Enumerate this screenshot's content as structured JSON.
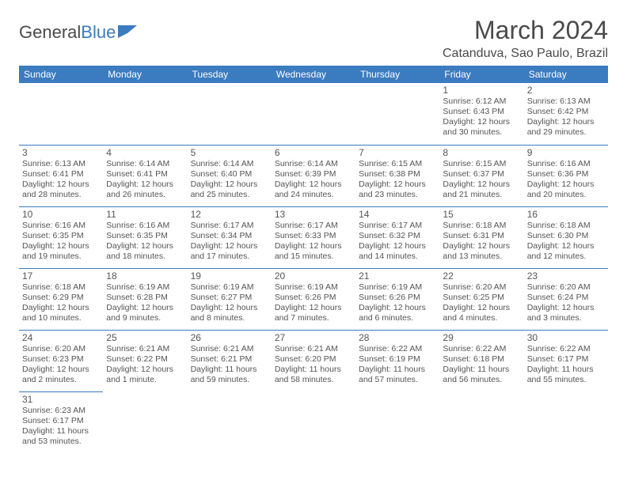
{
  "brand": {
    "part1": "General",
    "part2": "Blue"
  },
  "title": "March 2024",
  "location": "Catanduva, Sao Paulo, Brazil",
  "colors": {
    "header_bg": "#3b7bbf",
    "text": "#555555",
    "border": "#3b7bbf"
  },
  "day_headers": [
    "Sunday",
    "Monday",
    "Tuesday",
    "Wednesday",
    "Thursday",
    "Friday",
    "Saturday"
  ],
  "weeks": [
    [
      null,
      null,
      null,
      null,
      null,
      {
        "n": "1",
        "sr": "Sunrise: 6:12 AM",
        "ss": "Sunset: 6:43 PM",
        "dl": "Daylight: 12 hours and 30 minutes."
      },
      {
        "n": "2",
        "sr": "Sunrise: 6:13 AM",
        "ss": "Sunset: 6:42 PM",
        "dl": "Daylight: 12 hours and 29 minutes."
      }
    ],
    [
      {
        "n": "3",
        "sr": "Sunrise: 6:13 AM",
        "ss": "Sunset: 6:41 PM",
        "dl": "Daylight: 12 hours and 28 minutes."
      },
      {
        "n": "4",
        "sr": "Sunrise: 6:14 AM",
        "ss": "Sunset: 6:41 PM",
        "dl": "Daylight: 12 hours and 26 minutes."
      },
      {
        "n": "5",
        "sr": "Sunrise: 6:14 AM",
        "ss": "Sunset: 6:40 PM",
        "dl": "Daylight: 12 hours and 25 minutes."
      },
      {
        "n": "6",
        "sr": "Sunrise: 6:14 AM",
        "ss": "Sunset: 6:39 PM",
        "dl": "Daylight: 12 hours and 24 minutes."
      },
      {
        "n": "7",
        "sr": "Sunrise: 6:15 AM",
        "ss": "Sunset: 6:38 PM",
        "dl": "Daylight: 12 hours and 23 minutes."
      },
      {
        "n": "8",
        "sr": "Sunrise: 6:15 AM",
        "ss": "Sunset: 6:37 PM",
        "dl": "Daylight: 12 hours and 21 minutes."
      },
      {
        "n": "9",
        "sr": "Sunrise: 6:16 AM",
        "ss": "Sunset: 6:36 PM",
        "dl": "Daylight: 12 hours and 20 minutes."
      }
    ],
    [
      {
        "n": "10",
        "sr": "Sunrise: 6:16 AM",
        "ss": "Sunset: 6:35 PM",
        "dl": "Daylight: 12 hours and 19 minutes."
      },
      {
        "n": "11",
        "sr": "Sunrise: 6:16 AM",
        "ss": "Sunset: 6:35 PM",
        "dl": "Daylight: 12 hours and 18 minutes."
      },
      {
        "n": "12",
        "sr": "Sunrise: 6:17 AM",
        "ss": "Sunset: 6:34 PM",
        "dl": "Daylight: 12 hours and 17 minutes."
      },
      {
        "n": "13",
        "sr": "Sunrise: 6:17 AM",
        "ss": "Sunset: 6:33 PM",
        "dl": "Daylight: 12 hours and 15 minutes."
      },
      {
        "n": "14",
        "sr": "Sunrise: 6:17 AM",
        "ss": "Sunset: 6:32 PM",
        "dl": "Daylight: 12 hours and 14 minutes."
      },
      {
        "n": "15",
        "sr": "Sunrise: 6:18 AM",
        "ss": "Sunset: 6:31 PM",
        "dl": "Daylight: 12 hours and 13 minutes."
      },
      {
        "n": "16",
        "sr": "Sunrise: 6:18 AM",
        "ss": "Sunset: 6:30 PM",
        "dl": "Daylight: 12 hours and 12 minutes."
      }
    ],
    [
      {
        "n": "17",
        "sr": "Sunrise: 6:18 AM",
        "ss": "Sunset: 6:29 PM",
        "dl": "Daylight: 12 hours and 10 minutes."
      },
      {
        "n": "18",
        "sr": "Sunrise: 6:19 AM",
        "ss": "Sunset: 6:28 PM",
        "dl": "Daylight: 12 hours and 9 minutes."
      },
      {
        "n": "19",
        "sr": "Sunrise: 6:19 AM",
        "ss": "Sunset: 6:27 PM",
        "dl": "Daylight: 12 hours and 8 minutes."
      },
      {
        "n": "20",
        "sr": "Sunrise: 6:19 AM",
        "ss": "Sunset: 6:26 PM",
        "dl": "Daylight: 12 hours and 7 minutes."
      },
      {
        "n": "21",
        "sr": "Sunrise: 6:19 AM",
        "ss": "Sunset: 6:26 PM",
        "dl": "Daylight: 12 hours and 6 minutes."
      },
      {
        "n": "22",
        "sr": "Sunrise: 6:20 AM",
        "ss": "Sunset: 6:25 PM",
        "dl": "Daylight: 12 hours and 4 minutes."
      },
      {
        "n": "23",
        "sr": "Sunrise: 6:20 AM",
        "ss": "Sunset: 6:24 PM",
        "dl": "Daylight: 12 hours and 3 minutes."
      }
    ],
    [
      {
        "n": "24",
        "sr": "Sunrise: 6:20 AM",
        "ss": "Sunset: 6:23 PM",
        "dl": "Daylight: 12 hours and 2 minutes."
      },
      {
        "n": "25",
        "sr": "Sunrise: 6:21 AM",
        "ss": "Sunset: 6:22 PM",
        "dl": "Daylight: 12 hours and 1 minute."
      },
      {
        "n": "26",
        "sr": "Sunrise: 6:21 AM",
        "ss": "Sunset: 6:21 PM",
        "dl": "Daylight: 11 hours and 59 minutes."
      },
      {
        "n": "27",
        "sr": "Sunrise: 6:21 AM",
        "ss": "Sunset: 6:20 PM",
        "dl": "Daylight: 11 hours and 58 minutes."
      },
      {
        "n": "28",
        "sr": "Sunrise: 6:22 AM",
        "ss": "Sunset: 6:19 PM",
        "dl": "Daylight: 11 hours and 57 minutes."
      },
      {
        "n": "29",
        "sr": "Sunrise: 6:22 AM",
        "ss": "Sunset: 6:18 PM",
        "dl": "Daylight: 11 hours and 56 minutes."
      },
      {
        "n": "30",
        "sr": "Sunrise: 6:22 AM",
        "ss": "Sunset: 6:17 PM",
        "dl": "Daylight: 11 hours and 55 minutes."
      }
    ],
    [
      {
        "n": "31",
        "sr": "Sunrise: 6:23 AM",
        "ss": "Sunset: 6:17 PM",
        "dl": "Daylight: 11 hours and 53 minutes."
      },
      null,
      null,
      null,
      null,
      null,
      null
    ]
  ]
}
